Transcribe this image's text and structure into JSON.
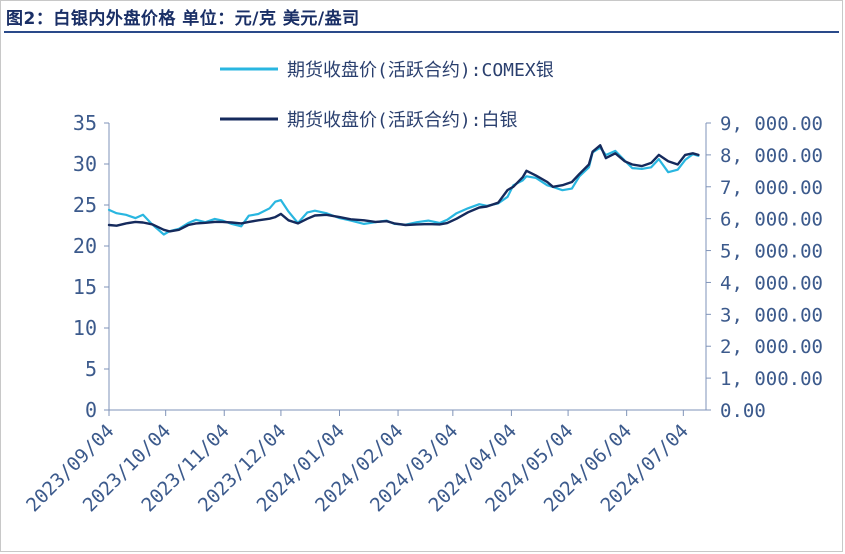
{
  "header": {
    "title": "图2：白银内外盘价格  单位：元/克 美元/盎司"
  },
  "chart_data": {
    "type": "line",
    "x_ticks": [
      "2023/09/04",
      "2023/10/04",
      "2023/11/04",
      "2023/12/04",
      "2024/01/04",
      "2024/02/04",
      "2024/03/04",
      "2024/04/04",
      "2024/05/04",
      "2024/06/04",
      "2024/07/04"
    ],
    "left_axis": {
      "ylim": [
        0,
        35
      ],
      "ticks": [
        "0",
        "5",
        "10",
        "15",
        "20",
        "25",
        "30",
        "35"
      ]
    },
    "right_axis": {
      "ylim": [
        0,
        9000
      ],
      "ticks": [
        "0.00",
        "1, 000.00",
        "2, 000.00",
        "3, 000.00",
        "4, 000.00",
        "5, 000.00",
        "6, 000.00",
        "7, 000.00",
        "8, 000.00",
        "9, 000.00"
      ]
    },
    "legend_placement": "top-center",
    "series": [
      {
        "name": "期货收盘价(活跃合约):COMEX银",
        "axis": "left",
        "color": "#29b6e0",
        "x": [
          "2023/09/04",
          "2023/09/08",
          "2023/09/13",
          "2023/09/18",
          "2023/09/22",
          "2023/09/27",
          "2023/10/03",
          "2023/10/06",
          "2023/10/11",
          "2023/10/16",
          "2023/10/20",
          "2023/10/25",
          "2023/10/30",
          "2023/11/03",
          "2023/11/08",
          "2023/11/13",
          "2023/11/17",
          "2023/11/22",
          "2023/11/28",
          "2023/12/01",
          "2023/12/04",
          "2023/12/08",
          "2023/12/13",
          "2023/12/18",
          "2023/12/22",
          "2023/12/28",
          "2024/01/04",
          "2024/01/10",
          "2024/01/17",
          "2024/01/23",
          "2024/01/29",
          "2024/02/02",
          "2024/02/08",
          "2024/02/14",
          "2024/02/20",
          "2024/02/26",
          "2024/03/01",
          "2024/03/06",
          "2024/03/12",
          "2024/03/18",
          "2024/03/22",
          "2024/03/28",
          "2024/04/02",
          "2024/04/05",
          "2024/04/10",
          "2024/04/12",
          "2024/04/17",
          "2024/04/23",
          "2024/04/26",
          "2024/05/01",
          "2024/05/06",
          "2024/05/10",
          "2024/05/15",
          "2024/05/17",
          "2024/05/21",
          "2024/05/24",
          "2024/05/29",
          "2024/06/03",
          "2024/06/07",
          "2024/06/12",
          "2024/06/17",
          "2024/06/21",
          "2024/06/26",
          "2024/07/01",
          "2024/07/05",
          "2024/07/09",
          "2024/07/12"
        ],
        "values": [
          24.4,
          24.0,
          23.8,
          23.4,
          23.8,
          22.6,
          21.4,
          21.8,
          22.1,
          22.8,
          23.2,
          22.9,
          23.3,
          23.1,
          22.7,
          22.4,
          23.7,
          23.9,
          24.6,
          25.4,
          25.6,
          24.2,
          22.8,
          24.1,
          24.3,
          24.0,
          23.4,
          23.1,
          22.7,
          22.9,
          23.1,
          22.7,
          22.6,
          22.9,
          23.1,
          22.8,
          23.2,
          24.0,
          24.6,
          25.1,
          24.9,
          25.2,
          26.0,
          27.4,
          28.0,
          28.5,
          28.3,
          27.4,
          27.2,
          26.8,
          27.0,
          28.5,
          29.6,
          31.4,
          32.0,
          31.1,
          31.6,
          30.4,
          29.5,
          29.4,
          29.6,
          30.6,
          29.0,
          29.3,
          30.5,
          31.2,
          31.0
        ]
      },
      {
        "name": "期货收盘价(活跃合约):白银",
        "axis": "right",
        "color": "#152a5c",
        "x": [
          "2023/09/04",
          "2023/09/08",
          "2023/09/13",
          "2023/09/18",
          "2023/09/22",
          "2023/09/27",
          "2023/10/03",
          "2023/10/06",
          "2023/10/11",
          "2023/10/16",
          "2023/10/20",
          "2023/10/25",
          "2023/10/30",
          "2023/11/03",
          "2023/11/08",
          "2023/11/13",
          "2023/11/17",
          "2023/11/22",
          "2023/11/28",
          "2023/12/01",
          "2023/12/04",
          "2023/12/08",
          "2023/12/13",
          "2023/12/18",
          "2023/12/22",
          "2023/12/28",
          "2024/01/04",
          "2024/01/10",
          "2024/01/17",
          "2024/01/23",
          "2024/01/29",
          "2024/02/02",
          "2024/02/08",
          "2024/02/14",
          "2024/02/20",
          "2024/02/26",
          "2024/03/01",
          "2024/03/06",
          "2024/03/12",
          "2024/03/18",
          "2024/03/22",
          "2024/03/28",
          "2024/04/02",
          "2024/04/05",
          "2024/04/10",
          "2024/04/12",
          "2024/04/17",
          "2024/04/23",
          "2024/04/26",
          "2024/05/01",
          "2024/05/06",
          "2024/05/10",
          "2024/05/15",
          "2024/05/17",
          "2024/05/21",
          "2024/05/24",
          "2024/05/29",
          "2024/06/03",
          "2024/06/07",
          "2024/06/12",
          "2024/06/17",
          "2024/06/21",
          "2024/06/26",
          "2024/07/01",
          "2024/07/05",
          "2024/07/09",
          "2024/07/12"
        ],
        "values": [
          5800,
          5780,
          5850,
          5900,
          5880,
          5820,
          5650,
          5600,
          5650,
          5800,
          5850,
          5870,
          5900,
          5900,
          5880,
          5850,
          5900,
          5950,
          6000,
          6050,
          6150,
          5950,
          5850,
          6000,
          6100,
          6120,
          6050,
          5980,
          5950,
          5900,
          5920,
          5850,
          5800,
          5820,
          5830,
          5820,
          5860,
          6000,
          6200,
          6350,
          6380,
          6500,
          6900,
          7000,
          7300,
          7500,
          7350,
          7150,
          7000,
          7050,
          7150,
          7400,
          7700,
          8100,
          8300,
          7900,
          8050,
          7800,
          7700,
          7650,
          7750,
          8000,
          7800,
          7700,
          8000,
          8050,
          8000
        ]
      }
    ]
  }
}
